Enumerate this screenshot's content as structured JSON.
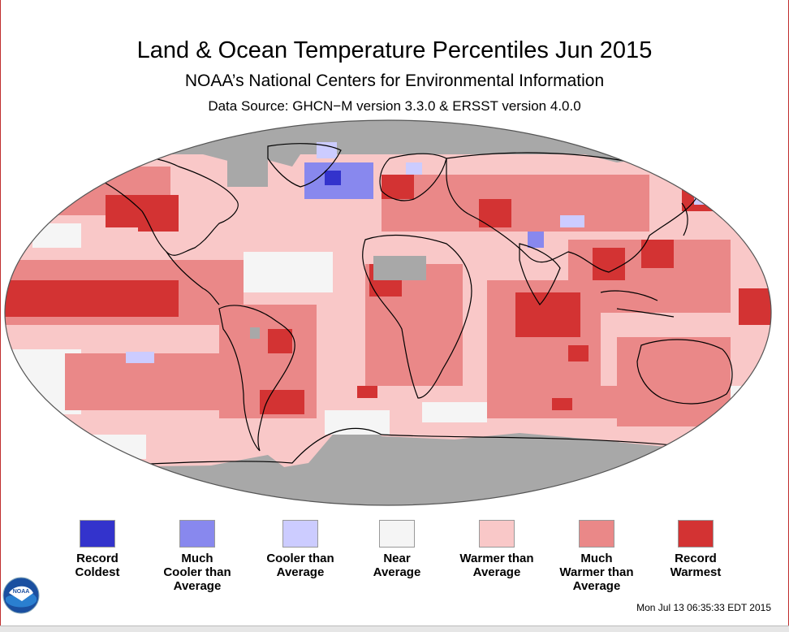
{
  "title": "Land & Ocean Temperature Percentiles Jun 2015",
  "subtitle": "NOAA’s National Centers for Environmental Information",
  "source": "Data Source: GHCN−M version 3.3.0 & ERSST version 4.0.0",
  "timestamp": "Mon Jul 13 06:35:33 EDT 2015",
  "logo_text": "NOAA",
  "legend": [
    {
      "label": "Record\nColdest",
      "color": "#3333cc"
    },
    {
      "label": "Much\nCooler than\nAverage",
      "color": "#8888ee"
    },
    {
      "label": "Cooler than\nAverage",
      "color": "#ccccff"
    },
    {
      "label": "Near\nAverage",
      "color": "#f5f5f5"
    },
    {
      "label": "Warmer than\nAverage",
      "color": "#f9c8c8"
    },
    {
      "label": "Much\nWarmer than\nAverage",
      "color": "#ea8888"
    },
    {
      "label": "Record\nWarmest",
      "color": "#d33333"
    }
  ],
  "map_colors": {
    "no_data": "#a8a8a8",
    "near": "#f5f5f5",
    "warm": "#f9c8c8",
    "much_warm": "#ea8888",
    "record_warm": "#d33333",
    "cool": "#ccccff",
    "much_cool": "#8888ee",
    "record_cold": "#3333cc"
  }
}
